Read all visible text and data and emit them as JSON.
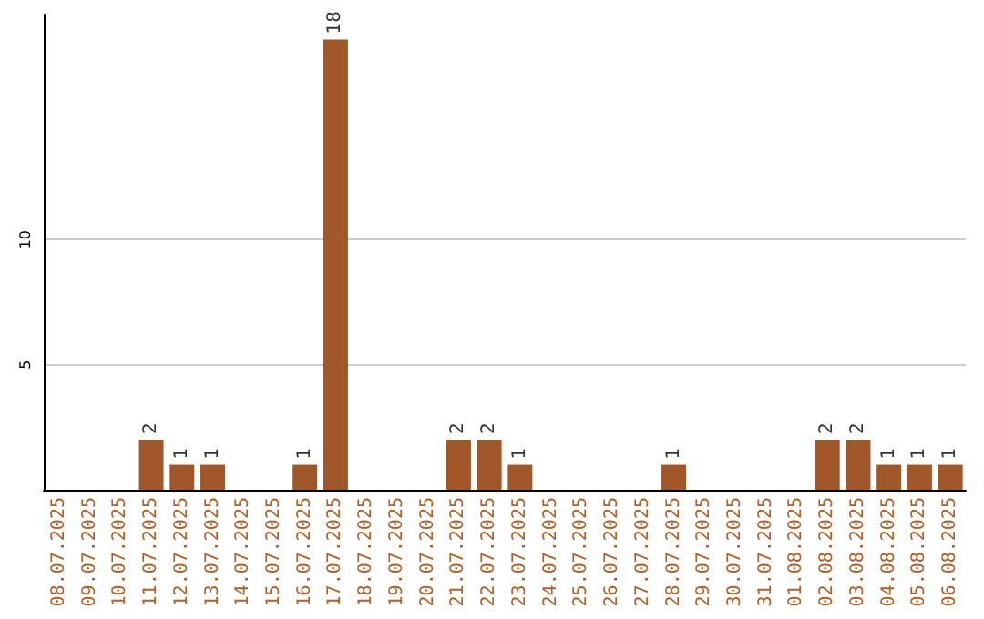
{
  "chart_data": {
    "type": "bar",
    "categories": [
      "08.07.2025",
      "09.07.2025",
      "10.07.2025",
      "11.07.2025",
      "12.07.2025",
      "13.07.2025",
      "14.07.2025",
      "15.07.2025",
      "16.07.2025",
      "17.07.2025",
      "18.07.2025",
      "19.07.2025",
      "20.07.2025",
      "21.07.2025",
      "22.07.2025",
      "23.07.2025",
      "24.07.2025",
      "25.07.2025",
      "26.07.2025",
      "27.07.2025",
      "28.07.2025",
      "29.07.2025",
      "30.07.2025",
      "31.07.2025",
      "01.08.2025",
      "02.08.2025",
      "03.08.2025",
      "04.08.2025",
      "05.08.2025",
      "06.08.2025"
    ],
    "values": [
      0,
      0,
      0,
      2,
      1,
      1,
      0,
      0,
      1,
      18,
      0,
      0,
      0,
      2,
      2,
      1,
      0,
      0,
      0,
      0,
      1,
      0,
      0,
      0,
      0,
      2,
      2,
      1,
      1,
      1
    ],
    "value_labels": [
      null,
      null,
      null,
      "2",
      "1",
      "1",
      null,
      null,
      "1",
      "18",
      null,
      null,
      null,
      "2",
      "2",
      "1",
      null,
      null,
      null,
      null,
      "1",
      null,
      null,
      null,
      null,
      "2",
      "2",
      "1",
      "1",
      "1"
    ],
    "color": "#a0582a",
    "ylim": [
      0,
      19
    ],
    "yticks": [
      5,
      10
    ],
    "grid": "y"
  }
}
